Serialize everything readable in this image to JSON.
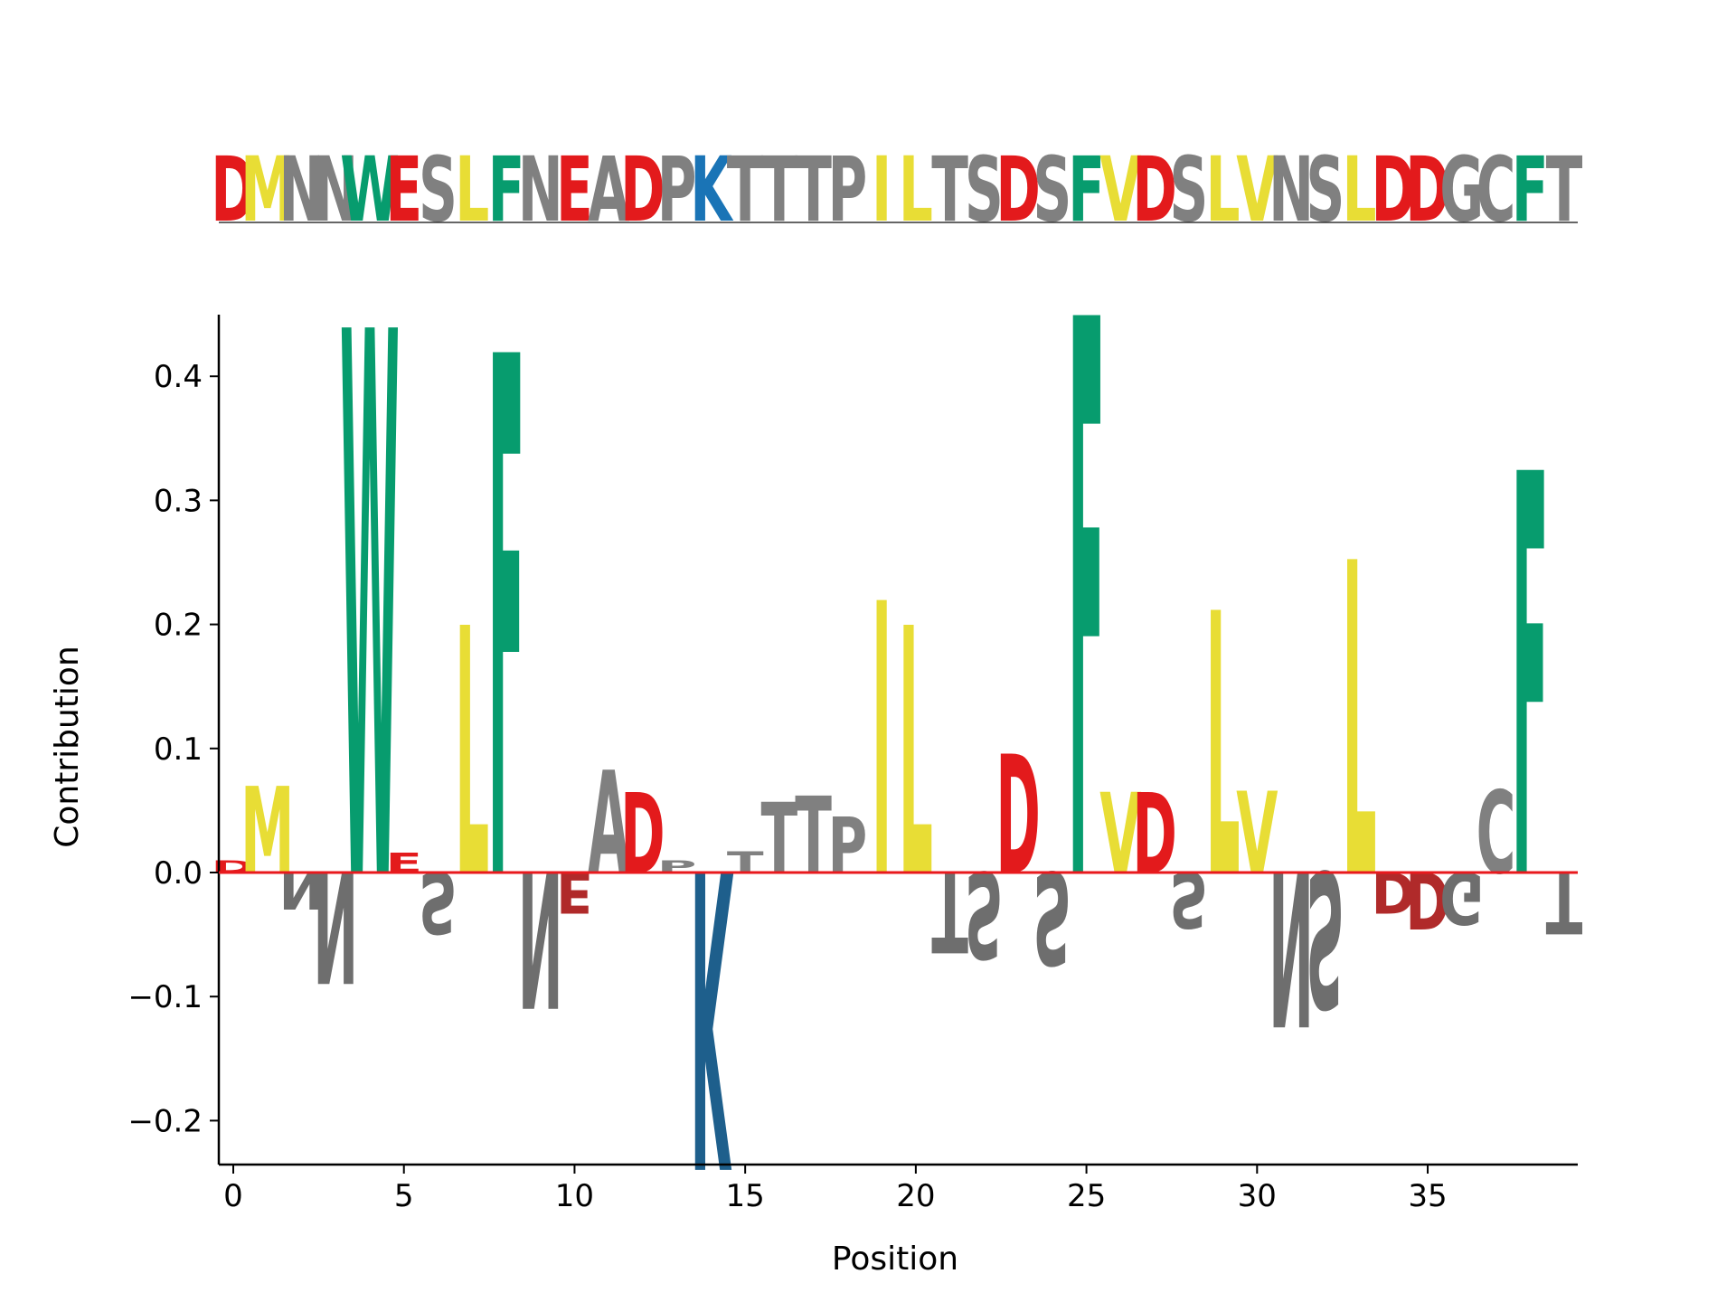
{
  "chart_data": {
    "type": "sequence-logo",
    "xlabel": "Position",
    "ylabel": "Contribution",
    "xlim": [
      -0.5,
      39.4
    ],
    "ylim": [
      -0.24,
      0.45
    ],
    "x_ticks": [
      0,
      5,
      10,
      15,
      20,
      25,
      30,
      35
    ],
    "x_tick_labels": [
      "0",
      "5",
      "10",
      "15",
      "20",
      "25",
      "30",
      "35"
    ],
    "y_ticks": [
      -0.2,
      -0.1,
      0.0,
      0.1,
      0.2,
      0.3,
      0.4
    ],
    "y_tick_labels": [
      "−0.2",
      "−0.1",
      "0.0",
      "0.1",
      "0.2",
      "0.3",
      "0.4"
    ],
    "baseline_color": "#e8191d",
    "sequence": "DMNNWESLFNEADPKTTTPILTSDSFVDSLVNSLDDGCFT",
    "colors": {
      "acidic": "#e31a1c",
      "acidic_neg": "#b02a2a",
      "hydrophobic": "#e8dd35",
      "aromatic": "#079c6e",
      "polar": "#808080",
      "polar_neg": "#6e6e6e",
      "basic": "#1a74b6",
      "basic_neg": "#1e5f8c"
    },
    "contributions": [
      {
        "pos": 0,
        "letter": "D",
        "value": 0.01
      },
      {
        "pos": 1,
        "letter": "M",
        "value": 0.07
      },
      {
        "pos": 2,
        "letter": "N",
        "value": -0.03
      },
      {
        "pos": 3,
        "letter": "N",
        "value": -0.09
      },
      {
        "pos": 4,
        "letter": "W",
        "value": 0.44
      },
      {
        "pos": 5,
        "letter": "E",
        "value": 0.016
      },
      {
        "pos": 6,
        "letter": "S",
        "value": -0.05
      },
      {
        "pos": 7,
        "letter": "L",
        "value": 0.2
      },
      {
        "pos": 8,
        "letter": "F",
        "value": 0.42
      },
      {
        "pos": 9,
        "letter": "N",
        "value": -0.11
      },
      {
        "pos": 10,
        "letter": "E",
        "value": -0.033
      },
      {
        "pos": 11,
        "letter": "A",
        "value": 0.083
      },
      {
        "pos": 12,
        "letter": "D",
        "value": 0.065
      },
      {
        "pos": 13,
        "letter": "P",
        "value": 0.01
      },
      {
        "pos": 14,
        "letter": "K",
        "value": -0.24
      },
      {
        "pos": 15,
        "letter": "T",
        "value": 0.017
      },
      {
        "pos": 16,
        "letter": "T",
        "value": 0.057
      },
      {
        "pos": 17,
        "letter": "T",
        "value": 0.062
      },
      {
        "pos": 18,
        "letter": "P",
        "value": 0.045
      },
      {
        "pos": 19,
        "letter": "I",
        "value": 0.22
      },
      {
        "pos": 20,
        "letter": "L",
        "value": 0.2
      },
      {
        "pos": 21,
        "letter": "T",
        "value": -0.065
      },
      {
        "pos": 22,
        "letter": "S",
        "value": -0.07
      },
      {
        "pos": 23,
        "letter": "D",
        "value": 0.096
      },
      {
        "pos": 24,
        "letter": "S",
        "value": -0.075
      },
      {
        "pos": 25,
        "letter": "F",
        "value": 0.45
      },
      {
        "pos": 26,
        "letter": "V",
        "value": 0.065
      },
      {
        "pos": 27,
        "letter": "D",
        "value": 0.065
      },
      {
        "pos": 28,
        "letter": "S",
        "value": -0.045
      },
      {
        "pos": 29,
        "letter": "L",
        "value": 0.212
      },
      {
        "pos": 30,
        "letter": "V",
        "value": 0.066
      },
      {
        "pos": 31,
        "letter": "N",
        "value": -0.125
      },
      {
        "pos": 32,
        "letter": "S",
        "value": -0.11
      },
      {
        "pos": 33,
        "letter": "L",
        "value": 0.253
      },
      {
        "pos": 34,
        "letter": "D",
        "value": -0.033
      },
      {
        "pos": 35,
        "letter": "D",
        "value": -0.046
      },
      {
        "pos": 36,
        "letter": "G",
        "value": -0.042
      },
      {
        "pos": 37,
        "letter": "C",
        "value": 0.067
      },
      {
        "pos": 38,
        "letter": "F",
        "value": 0.325
      },
      {
        "pos": 39,
        "letter": "T",
        "value": -0.05
      }
    ]
  }
}
